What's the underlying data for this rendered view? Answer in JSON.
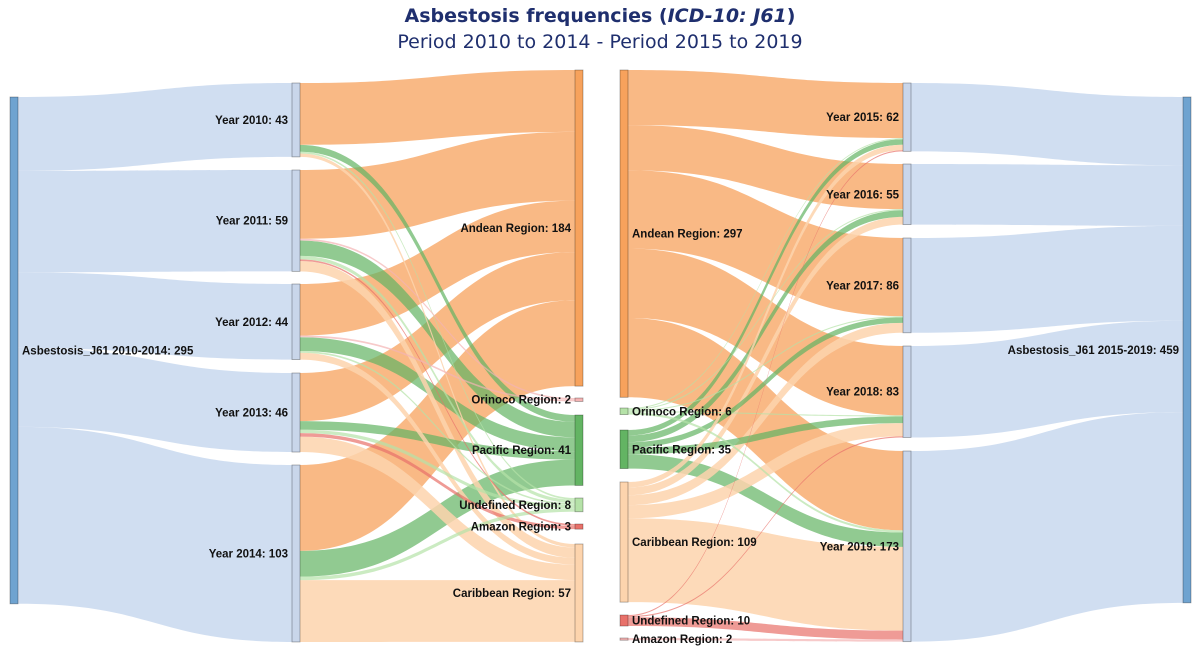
{
  "title": {
    "main": "Asbestosis frequencies (",
    "main_italic": "ICD-10: J61",
    "main_end": ")",
    "subtitle": "Period 2010 to 2014 - Period 2015 to 2019"
  },
  "chart_data": {
    "type": "sankey",
    "colors": {
      "total_link": "#c8d8ee",
      "total_node": "#6fa3d0",
      "year_node": "#c9d6ea",
      "andean": "#f7a25c",
      "pacific": "#63b463",
      "caribbean": "#fdd4ad",
      "light_green": "#b5e2a8",
      "red": "#e8716a",
      "pink": "#f4b3b3"
    },
    "panels": [
      {
        "nodes": [
          {
            "id": "T1",
            "label": "Asbestosis_J61 2010-2014: 295",
            "value": 295,
            "color": "total_node"
          },
          {
            "id": "Y2010",
            "label": "Year 2010: 43",
            "value": 43,
            "color": "year_node"
          },
          {
            "id": "Y2011",
            "label": "Year 2011: 59",
            "value": 59,
            "color": "year_node"
          },
          {
            "id": "Y2012",
            "label": "Year 2012: 44",
            "value": 44,
            "color": "year_node"
          },
          {
            "id": "Y2013",
            "label": "Year 2013: 46",
            "value": 46,
            "color": "year_node"
          },
          {
            "id": "Y2014",
            "label": "Year 2014: 103",
            "value": 103,
            "color": "year_node"
          },
          {
            "id": "LA",
            "label": "Andean Region: 184",
            "value": 184,
            "color": "andean"
          },
          {
            "id": "LO",
            "label": "Orinoco Region: 2",
            "value": 2,
            "color": "pink"
          },
          {
            "id": "LP",
            "label": "Pacific Region: 41",
            "value": 41,
            "color": "pacific"
          },
          {
            "id": "LU",
            "label": "Undefined Region: 8",
            "value": 8,
            "color": "light_green"
          },
          {
            "id": "LM",
            "label": "Amazon Region: 3",
            "value": 3,
            "color": "red"
          },
          {
            "id": "LC",
            "label": "Caribbean Region: 57",
            "value": 57,
            "color": "caribbean"
          }
        ],
        "links": [
          [
            "T1",
            "Y2010",
            43,
            "total_link"
          ],
          [
            "T1",
            "Y2011",
            59,
            "total_link"
          ],
          [
            "T1",
            "Y2012",
            44,
            "total_link"
          ],
          [
            "T1",
            "Y2013",
            46,
            "total_link"
          ],
          [
            "T1",
            "Y2014",
            103,
            "total_link"
          ],
          [
            "Y2010",
            "LA",
            36,
            "andean"
          ],
          [
            "Y2010",
            "LP",
            4,
            "pacific"
          ],
          [
            "Y2010",
            "LU",
            1,
            "light_green"
          ],
          [
            "Y2010",
            "LC",
            2,
            "caribbean"
          ],
          [
            "Y2011",
            "LA",
            40,
            "andean"
          ],
          [
            "Y2011",
            "LO",
            1,
            "pink"
          ],
          [
            "Y2011",
            "LP",
            9,
            "pacific"
          ],
          [
            "Y2011",
            "LU",
            2,
            "light_green"
          ],
          [
            "Y2011",
            "LM",
            1,
            "red"
          ],
          [
            "Y2011",
            "LC",
            6,
            "caribbean"
          ],
          [
            "Y2012",
            "LA",
            30,
            "andean"
          ],
          [
            "Y2012",
            "LO",
            1,
            "pink"
          ],
          [
            "Y2012",
            "LP",
            8,
            "pacific"
          ],
          [
            "Y2012",
            "LU",
            1,
            "light_green"
          ],
          [
            "Y2012",
            "LC",
            4,
            "caribbean"
          ],
          [
            "Y2013",
            "LA",
            28,
            "andean"
          ],
          [
            "Y2013",
            "LP",
            5,
            "pacific"
          ],
          [
            "Y2013",
            "LU",
            2,
            "light_green"
          ],
          [
            "Y2013",
            "LM",
            2,
            "red"
          ],
          [
            "Y2013",
            "LC",
            9,
            "caribbean"
          ],
          [
            "Y2014",
            "LA",
            50,
            "andean"
          ],
          [
            "Y2014",
            "LP",
            15,
            "pacific"
          ],
          [
            "Y2014",
            "LU",
            2,
            "light_green"
          ],
          [
            "Y2014",
            "LC",
            36,
            "caribbean"
          ]
        ]
      },
      {
        "nodes": [
          {
            "id": "RA",
            "label": "Andean Region: 297",
            "value": 297,
            "color": "andean"
          },
          {
            "id": "RO",
            "label": "Orinoco Region: 6",
            "value": 6,
            "color": "light_green"
          },
          {
            "id": "RP",
            "label": "Pacific Region: 35",
            "value": 35,
            "color": "pacific"
          },
          {
            "id": "RC",
            "label": "Caribbean Region: 109",
            "value": 109,
            "color": "caribbean"
          },
          {
            "id": "RU",
            "label": "Undefined Region: 10",
            "value": 10,
            "color": "red"
          },
          {
            "id": "RM",
            "label": "Amazon Region: 2",
            "value": 2,
            "color": "pink"
          },
          {
            "id": "Y2015",
            "label": "Year 2015: 62",
            "value": 62,
            "color": "year_node"
          },
          {
            "id": "Y2016",
            "label": "Year 2016: 55",
            "value": 55,
            "color": "year_node"
          },
          {
            "id": "Y2017",
            "label": "Year 2017: 86",
            "value": 86,
            "color": "year_node"
          },
          {
            "id": "Y2018",
            "label": "Year 2018: 83",
            "value": 83,
            "color": "year_node"
          },
          {
            "id": "Y2019",
            "label": "Year 2019: 173",
            "value": 173,
            "color": "year_node"
          },
          {
            "id": "T2",
            "label": "Asbestosis_J61 2015-2019: 459",
            "value": 459,
            "color": "total_node"
          }
        ],
        "links": [
          [
            "RA",
            "Y2015",
            50,
            "andean"
          ],
          [
            "RA",
            "Y2016",
            41,
            "andean"
          ],
          [
            "RA",
            "Y2017",
            71,
            "andean"
          ],
          [
            "RA",
            "Y2018",
            63,
            "andean"
          ],
          [
            "RA",
            "Y2019",
            72,
            "andean"
          ],
          [
            "RO",
            "Y2015",
            1,
            "light_green"
          ],
          [
            "RO",
            "Y2016",
            1,
            "light_green"
          ],
          [
            "RO",
            "Y2017",
            1,
            "light_green"
          ],
          [
            "RO",
            "Y2018",
            1,
            "light_green"
          ],
          [
            "RO",
            "Y2019",
            2,
            "light_green"
          ],
          [
            "RP",
            "Y2015",
            5,
            "pacific"
          ],
          [
            "RP",
            "Y2016",
            6,
            "pacific"
          ],
          [
            "RP",
            "Y2017",
            5,
            "pacific"
          ],
          [
            "RP",
            "Y2018",
            6,
            "pacific"
          ],
          [
            "RP",
            "Y2019",
            13,
            "pacific"
          ],
          [
            "RC",
            "Y2015",
            5,
            "caribbean"
          ],
          [
            "RC",
            "Y2016",
            7,
            "caribbean"
          ],
          [
            "RC",
            "Y2017",
            9,
            "caribbean"
          ],
          [
            "RC",
            "Y2018",
            12,
            "caribbean"
          ],
          [
            "RC",
            "Y2019",
            76,
            "caribbean"
          ],
          [
            "RU",
            "Y2015",
            1,
            "red"
          ],
          [
            "RU",
            "Y2018",
            1,
            "red"
          ],
          [
            "RU",
            "Y2019",
            8,
            "red"
          ],
          [
            "RM",
            "Y2019",
            2,
            "pink"
          ],
          [
            "Y2015",
            "T2",
            62,
            "total_link"
          ],
          [
            "Y2016",
            "T2",
            55,
            "total_link"
          ],
          [
            "Y2017",
            "T2",
            86,
            "total_link"
          ],
          [
            "Y2018",
            "T2",
            83,
            "total_link"
          ],
          [
            "Y2019",
            "T2",
            173,
            "total_link"
          ]
        ]
      }
    ]
  }
}
